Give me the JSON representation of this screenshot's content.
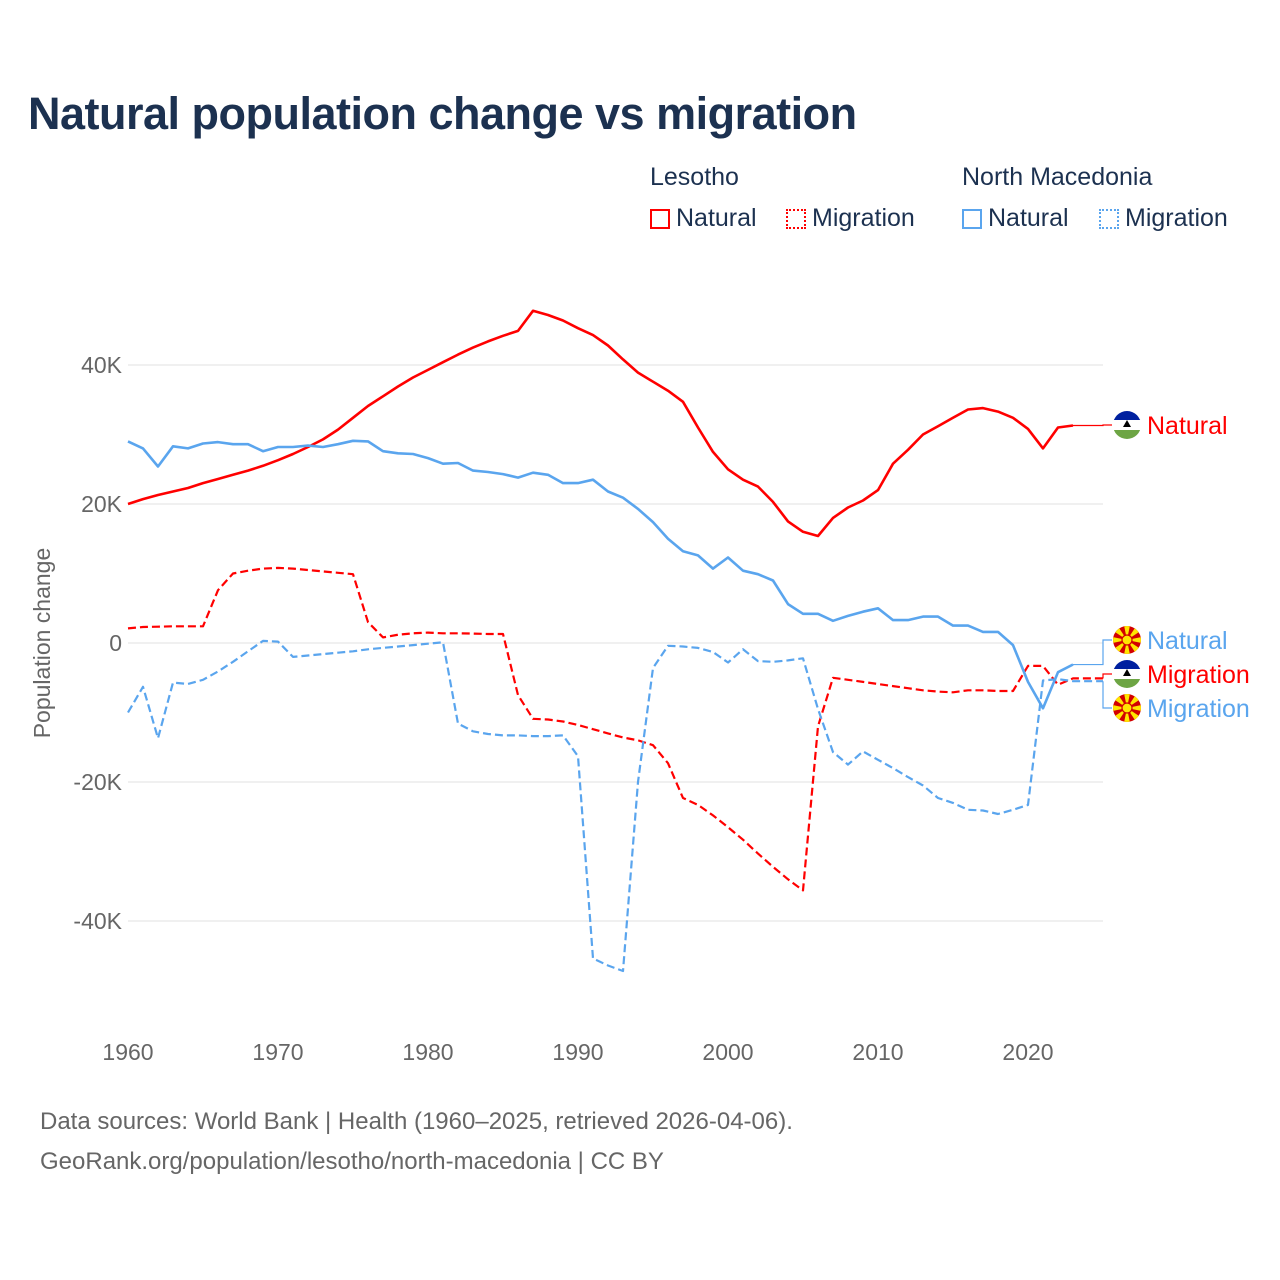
{
  "title": "Natural population change vs migration",
  "legend": {
    "groups": [
      {
        "country": "Lesotho",
        "items": [
          "Natural",
          "Migration"
        ]
      },
      {
        "country": "North Macedonia",
        "items": [
          "Natural",
          "Migration"
        ]
      }
    ]
  },
  "footer": {
    "line1": "Data sources: World Bank | Health (1960–2025, retrieved 2026-04-06).",
    "line2": "GeoRank.org/population/lesotho/north-macedonia | CC BY"
  },
  "colors": {
    "lesotho": "#ff0000",
    "north_macedonia": "#5aa5ee",
    "grid": "#e6e6e6",
    "axis_text": "#666666",
    "title": "#1c3150"
  },
  "chart_data": {
    "type": "line",
    "title": "Natural population change vs migration",
    "xlabel": "",
    "ylabel": "Population change",
    "xlim": [
      1960,
      2025
    ],
    "ylim": [
      -50000,
      50000
    ],
    "x_ticks": [
      1960,
      1970,
      1980,
      1990,
      2000,
      2010,
      2020
    ],
    "x_tick_labels": [
      "1960",
      "1970",
      "1980",
      "1990",
      "2000",
      "2010",
      "2020"
    ],
    "y_ticks": [
      -40000,
      -20000,
      0,
      20000,
      40000
    ],
    "y_tick_labels": [
      "-40K",
      "-20K",
      "0",
      "20K",
      "40K"
    ],
    "grid": true,
    "legend_position": "top-right",
    "series": [
      {
        "name": "Lesotho Natural",
        "country": "Lesotho",
        "kind": "Natural",
        "label": "Natural",
        "style": "solid",
        "color": "#ff0000",
        "start_year": 1960,
        "values": [
          20000,
          20700,
          21300,
          21800,
          22300,
          23000,
          23600,
          24200,
          24800,
          25500,
          26300,
          27200,
          28200,
          29300,
          30700,
          32400,
          34100,
          35500,
          36900,
          38200,
          39300,
          40400,
          41500,
          42500,
          43400,
          44200,
          44900,
          47800,
          47200,
          46400,
          45300,
          44300,
          42800,
          40800,
          38900,
          37600,
          36300,
          34700,
          31000,
          27500,
          25000,
          23500,
          22500,
          20300,
          17500,
          16000,
          15400,
          18000,
          19500,
          20500,
          22000,
          25800,
          27800,
          30000,
          31200,
          32400,
          33600,
          33800,
          33300,
          32400,
          30800,
          28000,
          31000,
          31300
        ]
      },
      {
        "name": "Lesotho Migration",
        "country": "Lesotho",
        "kind": "Migration",
        "label": "Migration",
        "style": "dashed",
        "color": "#ff0000",
        "start_year": 1960,
        "values": [
          2100,
          2300,
          2350,
          2400,
          2400,
          2400,
          7600,
          10000,
          10400,
          10700,
          10800,
          10700,
          10500,
          10300,
          10100,
          9900,
          3000,
          800,
          1200,
          1400,
          1500,
          1400,
          1400,
          1350,
          1300,
          1300,
          -7500,
          -10900,
          -11000,
          -11300,
          -11800,
          -12400,
          -13000,
          -13600,
          -14000,
          -14700,
          -17300,
          -22300,
          -23300,
          -24800,
          -26500,
          -28300,
          -30300,
          -32200,
          -34000,
          -35600,
          -12000,
          -5000,
          -5300,
          -5600,
          -5900,
          -6200,
          -6500,
          -6800,
          -7000,
          -7100,
          -6800,
          -6800,
          -6900,
          -6900,
          -3300,
          -3300,
          -6000,
          -5100,
          -5100,
          -5100
        ]
      },
      {
        "name": "North Macedonia Natural",
        "country": "North Macedonia",
        "kind": "Natural",
        "label": "Natural",
        "style": "solid",
        "color": "#5aa5ee",
        "start_year": 1960,
        "values": [
          29000,
          28000,
          25400,
          28300,
          28000,
          28700,
          28900,
          28600,
          28600,
          27600,
          28200,
          28200,
          28400,
          28200,
          28600,
          29100,
          29000,
          27600,
          27300,
          27200,
          26600,
          25800,
          25900,
          24800,
          24600,
          24300,
          23800,
          24500,
          24200,
          23000,
          23000,
          23500,
          21800,
          20900,
          19300,
          17400,
          15000,
          13200,
          12600,
          10700,
          12300,
          10400,
          9900,
          9000,
          5600,
          4200,
          4200,
          3200,
          3900,
          4500,
          5000,
          3300,
          3300,
          3800,
          3800,
          2500,
          2500,
          1600,
          1600,
          -300,
          -5600,
          -9400,
          -4200,
          -3100
        ]
      },
      {
        "name": "North Macedonia Migration",
        "country": "North Macedonia",
        "kind": "Migration",
        "label": "Migration",
        "style": "dashed",
        "color": "#5aa5ee",
        "start_year": 1960,
        "values": [
          -10000,
          -6300,
          -13700,
          -5700,
          -5900,
          -5300,
          -4100,
          -2700,
          -1200,
          300,
          200,
          -2000,
          -1800,
          -1600,
          -1400,
          -1200,
          -900,
          -700,
          -500,
          -300,
          -100,
          100,
          -11600,
          -12700,
          -13100,
          -13300,
          -13300,
          -13400,
          -13400,
          -13300,
          -16300,
          -45400,
          -46400,
          -47200,
          -20000,
          -3600,
          -400,
          -500,
          -700,
          -1300,
          -2800,
          -900,
          -2600,
          -2700,
          -2500,
          -2200,
          -9500,
          -15700,
          -17500,
          -15600,
          -16800,
          -18000,
          -19300,
          -20500,
          -22300,
          -23000,
          -24000,
          -24100,
          -24600,
          -24000,
          -23300,
          -5400,
          -5200,
          -5500,
          -5500,
          -5500
        ]
      }
    ]
  }
}
